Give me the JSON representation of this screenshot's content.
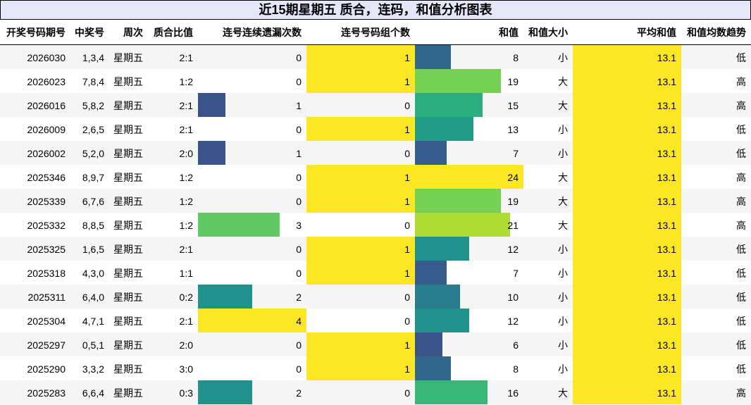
{
  "title": "近15期星期五 质合，连码，和值分析图表",
  "table": {
    "columns": [
      "开奖号码期号",
      "中奖号",
      "周次",
      "质合比值",
      "连号连续遗漏次数",
      "连号号码组个数",
      "和值",
      "和值大小",
      "平均和值",
      "和值均数趋势"
    ],
    "rows": [
      [
        2026030,
        "1,3,4",
        "星期五",
        "2:1",
        0,
        1,
        8,
        "小",
        13.1,
        "低"
      ],
      [
        2026023,
        "7,8,4",
        "星期五",
        "1:2",
        0,
        1,
        19,
        "大",
        13.1,
        "高"
      ],
      [
        2026016,
        "5,8,2",
        "星期五",
        "2:1",
        1,
        0,
        15,
        "大",
        13.1,
        "高"
      ],
      [
        2026009,
        "2,6,5",
        "星期五",
        "2:1",
        0,
        1,
        13,
        "小",
        13.1,
        "低"
      ],
      [
        2026002,
        "5,2,0",
        "星期五",
        "2:0",
        1,
        0,
        7,
        "小",
        13.1,
        "低"
      ],
      [
        2025346,
        "8,9,7",
        "星期五",
        "1:2",
        0,
        1,
        24,
        "大",
        13.1,
        "高"
      ],
      [
        2025339,
        "6,7,6",
        "星期五",
        "1:2",
        0,
        1,
        19,
        "大",
        13.1,
        "高"
      ],
      [
        2025332,
        "8,8,5",
        "星期五",
        "1:2",
        3,
        0,
        21,
        "大",
        13.1,
        "高"
      ],
      [
        2025325,
        "1,6,5",
        "星期五",
        "2:1",
        0,
        1,
        12,
        "小",
        13.1,
        "低"
      ],
      [
        2025318,
        "4,3,0",
        "星期五",
        "1:1",
        0,
        1,
        7,
        "小",
        13.1,
        "低"
      ],
      [
        2025311,
        "6,4,0",
        "星期五",
        "0:2",
        2,
        0,
        10,
        "小",
        13.1,
        "低"
      ],
      [
        2025304,
        "4,7,1",
        "星期五",
        "2:1",
        4,
        0,
        12,
        "小",
        13.1,
        "低"
      ],
      [
        2025297,
        "0,5,1",
        "星期五",
        "2:0",
        0,
        1,
        6,
        "小",
        13.1,
        "低"
      ],
      [
        2025290,
        "3,3,2",
        "星期五",
        "3:0",
        0,
        1,
        8,
        "小",
        13.1,
        "低"
      ],
      [
        2025283,
        "6,6,4",
        "星期五",
        "0:3",
        2,
        0,
        16,
        "大",
        13.1,
        "高"
      ]
    ]
  }
}
